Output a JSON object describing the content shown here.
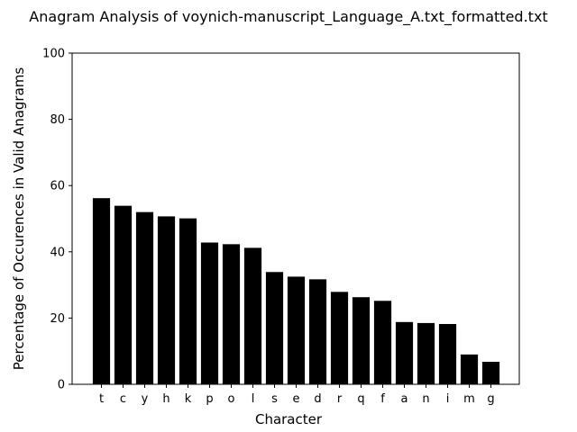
{
  "chart_data": {
    "type": "bar",
    "title": "Anagram Analysis of voynich-manuscript_Language_A.txt_formatted.txt",
    "xlabel": "Character",
    "ylabel": "Percentage of Occurences in Valid Anagrams",
    "categories": [
      "t",
      "c",
      "y",
      "h",
      "k",
      "p",
      "o",
      "l",
      "s",
      "e",
      "d",
      "r",
      "q",
      "f",
      "a",
      "n",
      "i",
      "m",
      "g"
    ],
    "values": [
      56.2,
      53.9,
      52.0,
      50.7,
      50.1,
      42.8,
      42.3,
      41.2,
      33.9,
      32.5,
      31.7,
      27.9,
      26.3,
      25.2,
      18.8,
      18.5,
      18.2,
      9.0,
      6.8
    ],
    "ylim": [
      0,
      100
    ],
    "yticks": [
      0,
      20,
      40,
      60,
      80,
      100
    ],
    "bar_color": "#000000",
    "grid": false,
    "legend": "none"
  }
}
